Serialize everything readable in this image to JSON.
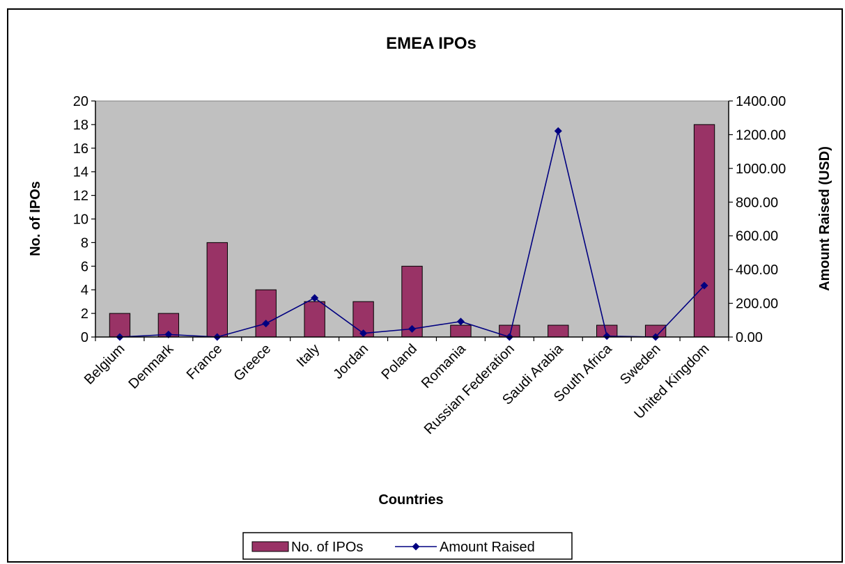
{
  "chart_data": {
    "type": "bar",
    "title": "EMEA IPOs",
    "xlabel": "Countries",
    "ylabel": "No. of IPOs",
    "y2label": "Amount Raised (USD)",
    "categories": [
      "Belgium",
      "Denmark",
      "France",
      "Greece",
      "Italy",
      "Jordan",
      "Poland",
      "Romania",
      "Russian Federation",
      "Saudi Arabia",
      "South Africa",
      "Sweden",
      "United Kingdom"
    ],
    "series": [
      {
        "name": "No. of IPOs",
        "type": "bar",
        "axis": "left",
        "color": "#993366",
        "values": [
          2,
          2,
          8,
          4,
          3,
          3,
          6,
          1,
          1,
          1,
          1,
          1,
          18
        ]
      },
      {
        "name": "Amount Raised",
        "type": "line",
        "axis": "right",
        "color": "#000080",
        "values": [
          0,
          15,
          0,
          80,
          232,
          22,
          48,
          92,
          0,
          1222,
          5,
          0,
          305
        ]
      }
    ],
    "ylim": [
      0,
      20
    ],
    "y2lim": [
      0,
      1400
    ],
    "yticks": [
      "0",
      "2",
      "4",
      "6",
      "8",
      "10",
      "12",
      "14",
      "16",
      "18",
      "20"
    ],
    "y2ticks": [
      "0.00",
      "200.00",
      "400.00",
      "600.00",
      "800.00",
      "1000.00",
      "1200.00",
      "1400.00"
    ],
    "plot_background": "#c0c0c0",
    "legend_position": "bottom"
  }
}
